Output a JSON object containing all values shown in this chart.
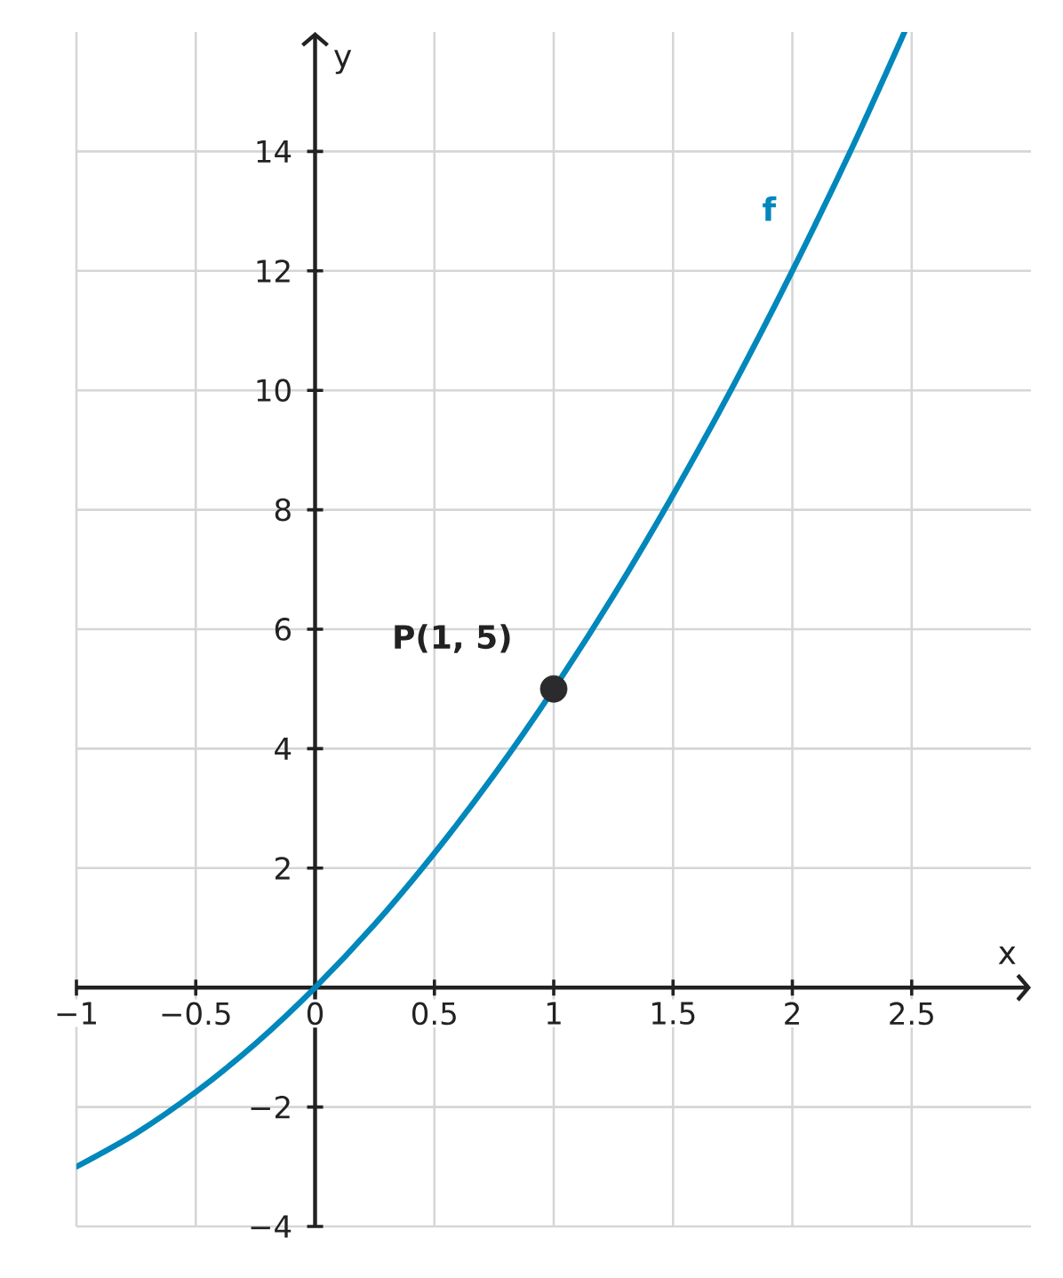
{
  "chart_data": {
    "type": "line",
    "xlabel": "x",
    "ylabel": "y",
    "xlim": [
      -1,
      3
    ],
    "ylim": [
      -4,
      16
    ],
    "xticks": [
      {
        "value": -1,
        "label": "−1"
      },
      {
        "value": -0.5,
        "label": "−0.5"
      },
      0,
      0.5,
      1,
      1.5,
      2,
      2.5
    ],
    "yticks": [
      {
        "value": -4,
        "label": "−4"
      },
      {
        "value": -2,
        "label": "−2"
      },
      2,
      4,
      6,
      8,
      10,
      12,
      14
    ],
    "grid": true,
    "series": [
      {
        "name": "f",
        "type": "line",
        "color": "#0087bb",
        "x": [
          -1,
          -0.75,
          -0.5,
          -0.25,
          0,
          0.25,
          0.5,
          0.75,
          1,
          1.25,
          1.5,
          1.75,
          2,
          2.25,
          2.47
        ],
        "values": [
          -3,
          -2.44,
          -1.75,
          -0.94,
          0,
          1.06,
          2.25,
          3.56,
          5,
          6.56,
          8.25,
          10.06,
          12,
          14.06,
          16
        ]
      },
      {
        "type": "scatter",
        "color": "#2b2b2e",
        "marker": "circle",
        "x": [
          1
        ],
        "values": [
          5
        ]
      }
    ],
    "annotations": [
      {
        "text": "P(1, 5)",
        "x": 1,
        "y": 5
      }
    ]
  }
}
